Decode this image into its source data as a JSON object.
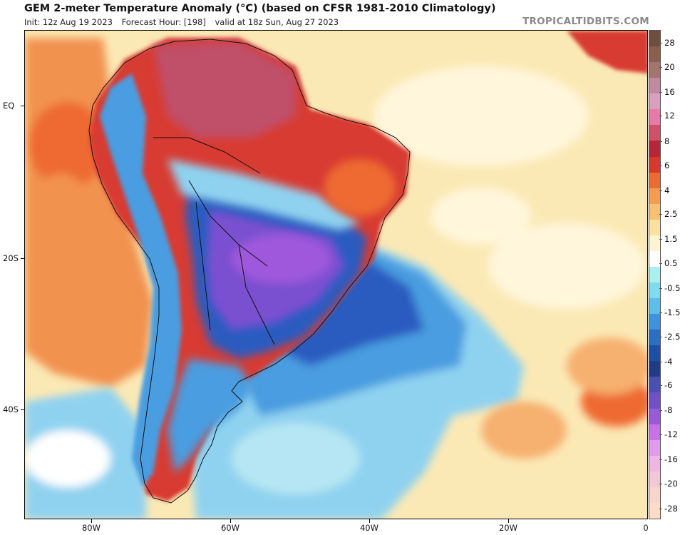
{
  "header": {
    "title": "GEM 2-meter Temperature Anomaly (°C) (based on CFSR 1981-2010 Climatology)",
    "init": "Init: 12z Aug 19 2023",
    "forecast_hour": "Forecast Hour: [198]",
    "valid": "valid at 18z Sun, Aug 27 2023",
    "brand": "TROPICALTIDBITS.COM"
  },
  "axes": {
    "lat_labels": [
      "EQ",
      "20S",
      "40S"
    ],
    "lon_labels": [
      "80W",
      "60W",
      "40W",
      "20W",
      "0"
    ]
  },
  "legend": {
    "labels": [
      "28",
      "20",
      "16",
      "12",
      "8",
      "6",
      "4",
      "2.5",
      "1.5",
      "0.5",
      "-0.5",
      "-1.5",
      "-2.5",
      "-4",
      "-6",
      "-8",
      "-12",
      "-16",
      "-20",
      "-28"
    ],
    "colors": [
      "#6e4e3c",
      "#8a5f4c",
      "#a4746e",
      "#c08aa0",
      "#d9a0bd",
      "#e87aa8",
      "#d24f6a",
      "#b8253a",
      "#d8382e",
      "#ee6a33",
      "#f59c50",
      "#f8c072",
      "#fbe1a0",
      "#fdf4d4",
      "#ffffff",
      "#a9f0ef",
      "#7fdcee",
      "#5fbde9",
      "#3d93dc",
      "#2a6fc4",
      "#1d4fa4",
      "#203c86",
      "#4a4fb4",
      "#6f53c6",
      "#9a59d6",
      "#c672e6",
      "#e29aec",
      "#eeb6e4",
      "#f2c8d6",
      "#f8d4cc",
      "#fbdcc6"
    ]
  },
  "map": {
    "colors": {
      "ocean_warm": "#fbe9b5",
      "ocean_pale": "#fff6dc",
      "warm_orange": "#f2924f",
      "hot_red": "#d83a30",
      "hot_magenta": "#c0506a",
      "cool_light_blue": "#8fd2f0",
      "cool_blue": "#4a9de0",
      "deep_blue": "#2a5cc0",
      "violet": "#7a4fd0",
      "purple": "#9f58dc"
    }
  }
}
